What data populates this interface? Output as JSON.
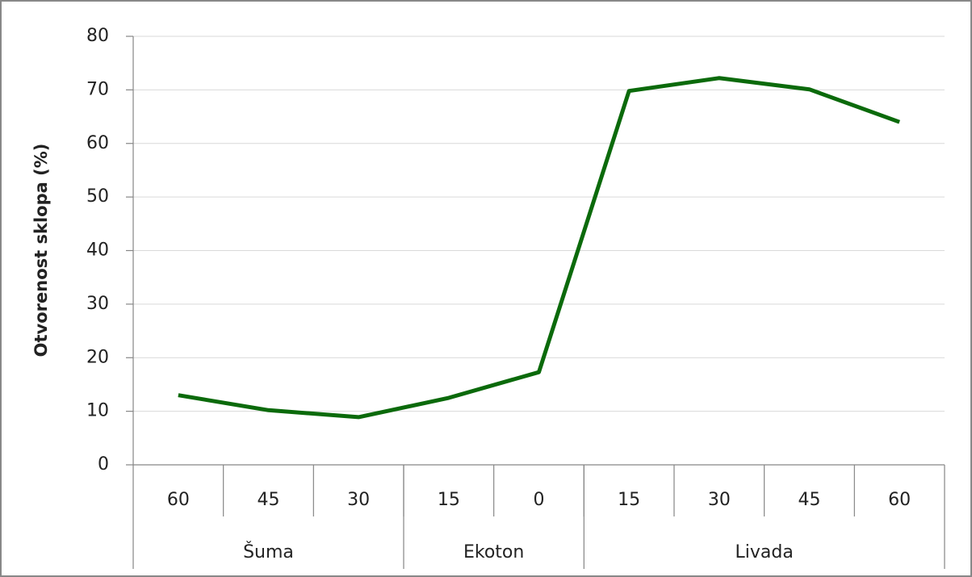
{
  "chart_data": {
    "type": "line",
    "y_label": "Otvorenost sklopa (%)",
    "categories": [
      "60",
      "45",
      "30",
      "15",
      "0",
      "15",
      "30",
      "45",
      "60"
    ],
    "groups": [
      {
        "label": "Šuma",
        "span": 3
      },
      {
        "label": "Ekoton",
        "span": 2
      },
      {
        "label": "Livada",
        "span": 4
      }
    ],
    "series": [
      {
        "color": "#0b6a0b",
        "values": [
          13,
          10.2,
          8.9,
          12.5,
          17.3,
          69.8,
          72.2,
          70.1,
          64
        ]
      }
    ],
    "ylim": [
      0,
      80
    ],
    "yticks": [
      0,
      10,
      20,
      30,
      40,
      50,
      60,
      70,
      80
    ],
    "grid": true
  }
}
